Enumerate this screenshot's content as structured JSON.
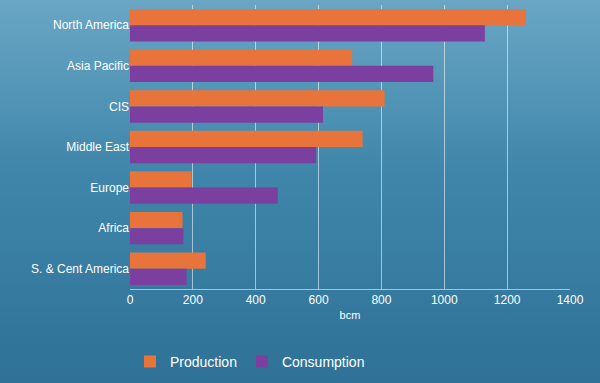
{
  "chart_data": {
    "type": "bar",
    "orientation": "horizontal",
    "categories": [
      "North America",
      "Asia Pacific",
      "CIS",
      "Middle East",
      "Europe",
      "Africa",
      "S. & Cent America"
    ],
    "series": [
      {
        "name": "Production",
        "color": "#e8743b",
        "values": [
          1260,
          707,
          810,
          740,
          196,
          167,
          241
        ]
      },
      {
        "name": "Consumption",
        "color": "#7b3fa0",
        "values": [
          1129,
          965,
          614,
          592,
          470,
          170,
          180
        ]
      }
    ],
    "x_label": "bcm",
    "xlim": [
      0,
      1400
    ],
    "xticks": [
      0,
      200,
      400,
      600,
      800,
      1000,
      1200,
      1400
    ],
    "grid": true,
    "legend": "bottom"
  }
}
